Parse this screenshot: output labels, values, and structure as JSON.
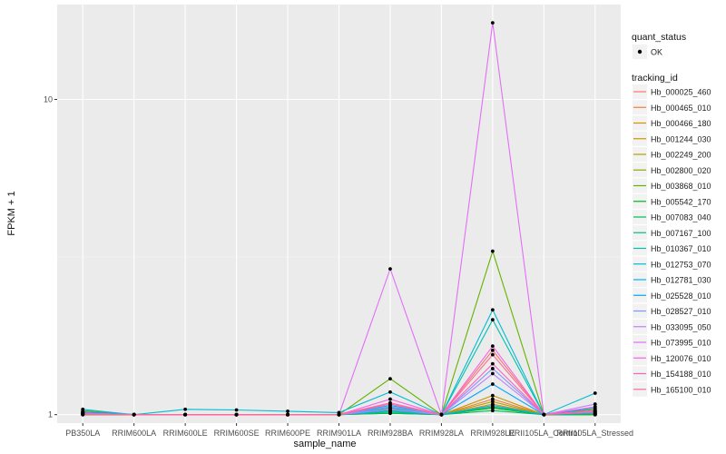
{
  "chart_data": {
    "type": "line",
    "title": "",
    "xlabel": "sample_name",
    "ylabel": "FPKM + 1",
    "y_scale": "log10",
    "ylim": [
      0.94,
      20
    ],
    "y_ticks": [
      1,
      10
    ],
    "y_tick_labels": [
      "1",
      "10"
    ],
    "grid": true,
    "legend_position": "right",
    "categories": [
      "PB350LA",
      "RRIM600LA",
      "RRIM600LE",
      "RRIM600SE",
      "RRIM600PE",
      "RRIM901LA",
      "RRIM928BA",
      "RRIM928LA",
      "RRIM928LE",
      "RRII105LA_Control",
      "RRII105LA_Stressed"
    ],
    "point_legend": {
      "title": "quant_status",
      "items": [
        {
          "label": "OK",
          "color": "#000000"
        }
      ]
    },
    "line_legend_title": "tracking_id",
    "series": [
      {
        "name": "Hb_000025_460",
        "color": "#F8766D",
        "values": [
          1.02,
          1.0,
          1.0,
          1.0,
          1.0,
          1.0,
          1.05,
          1.0,
          1.6,
          1.0,
          1.02
        ]
      },
      {
        "name": "Hb_000465_010",
        "color": "#EE8043",
        "values": [
          1.01,
          1.0,
          1.0,
          1.0,
          1.0,
          1.0,
          1.03,
          1.0,
          1.12,
          1.0,
          1.01
        ]
      },
      {
        "name": "Hb_000466_180",
        "color": "#DE8C00",
        "values": [
          1.0,
          1.0,
          1.0,
          1.0,
          1.0,
          1.0,
          1.02,
          1.0,
          1.08,
          1.0,
          1.0
        ]
      },
      {
        "name": "Hb_001244_030",
        "color": "#C99800",
        "values": [
          1.01,
          1.0,
          1.0,
          1.0,
          1.0,
          1.0,
          1.04,
          1.0,
          1.15,
          1.0,
          1.01
        ]
      },
      {
        "name": "Hb_002249_200",
        "color": "#AFA100",
        "values": [
          1.0,
          1.0,
          1.0,
          1.0,
          1.0,
          1.0,
          1.02,
          1.0,
          1.1,
          1.0,
          1.0
        ]
      },
      {
        "name": "Hb_002800_020",
        "color": "#8EAB00",
        "values": [
          1.01,
          1.0,
          1.0,
          1.0,
          1.0,
          1.0,
          1.03,
          1.0,
          1.05,
          1.0,
          1.01
        ]
      },
      {
        "name": "Hb_003868_010",
        "color": "#64B200",
        "values": [
          1.03,
          1.0,
          1.0,
          1.0,
          1.0,
          1.0,
          1.3,
          1.0,
          3.3,
          1.0,
          1.04
        ]
      },
      {
        "name": "Hb_005542_170",
        "color": "#00B81B",
        "values": [
          1.0,
          1.0,
          1.0,
          1.0,
          1.0,
          1.0,
          1.01,
          1.0,
          1.05,
          1.0,
          1.0
        ]
      },
      {
        "name": "Hb_007083_040",
        "color": "#00BD5C",
        "values": [
          1.0,
          1.0,
          1.0,
          1.0,
          1.0,
          1.0,
          1.01,
          1.0,
          1.03,
          1.0,
          1.0
        ]
      },
      {
        "name": "Hb_007167_100",
        "color": "#00C086",
        "values": [
          1.01,
          1.0,
          1.0,
          1.0,
          1.0,
          1.0,
          1.02,
          1.0,
          1.06,
          1.0,
          1.02
        ]
      },
      {
        "name": "Hb_010367_010",
        "color": "#00C0AB",
        "values": [
          1.02,
          1.0,
          1.0,
          1.0,
          1.0,
          1.0,
          1.05,
          1.0,
          2.0,
          1.0,
          1.03
        ]
      },
      {
        "name": "Hb_012753_070",
        "color": "#00BCD3",
        "values": [
          1.04,
          1.0,
          1.04,
          1.035,
          1.025,
          1.015,
          1.18,
          1.0,
          2.15,
          1.0,
          1.17
        ]
      },
      {
        "name": "Hb_012781_030",
        "color": "#00B2F3",
        "values": [
          1.01,
          1.0,
          1.0,
          1.0,
          1.0,
          1.0,
          1.03,
          1.0,
          1.07,
          1.0,
          1.01
        ]
      },
      {
        "name": "Hb_025528_010",
        "color": "#00A5FF",
        "values": [
          1.02,
          1.0,
          1.0,
          1.0,
          1.0,
          1.0,
          1.07,
          1.0,
          1.25,
          1.0,
          1.05
        ]
      },
      {
        "name": "Hb_028527_010",
        "color": "#7F96FF",
        "values": [
          1.01,
          1.0,
          1.0,
          1.0,
          1.0,
          1.0,
          1.06,
          1.0,
          1.4,
          1.0,
          1.03
        ]
      },
      {
        "name": "Hb_033095_050",
        "color": "#BC81FF",
        "values": [
          1.01,
          1.0,
          1.0,
          1.0,
          1.0,
          1.0,
          1.04,
          1.0,
          1.35,
          1.0,
          1.08
        ]
      },
      {
        "name": "Hb_073995_010",
        "color": "#E26EF7",
        "values": [
          1.01,
          1.0,
          1.0,
          1.0,
          1.0,
          1.0,
          2.9,
          1.0,
          17.5,
          1.0,
          1.02
        ]
      },
      {
        "name": "Hb_120076_010",
        "color": "#F863DF",
        "values": [
          1.01,
          1.0,
          1.0,
          1.0,
          1.0,
          1.0,
          1.12,
          1.0,
          1.65,
          1.0,
          1.06
        ]
      },
      {
        "name": "Hb_154188_010",
        "color": "#FF62BC",
        "values": [
          1.01,
          1.0,
          1.0,
          1.0,
          1.0,
          1.0,
          1.09,
          1.0,
          1.45,
          1.0,
          1.03
        ]
      },
      {
        "name": "Hb_165100_010",
        "color": "#FF6C91",
        "values": [
          1.0,
          1.0,
          1.0,
          1.0,
          1.0,
          1.0,
          1.08,
          1.0,
          1.55,
          1.0,
          1.02
        ]
      }
    ]
  }
}
